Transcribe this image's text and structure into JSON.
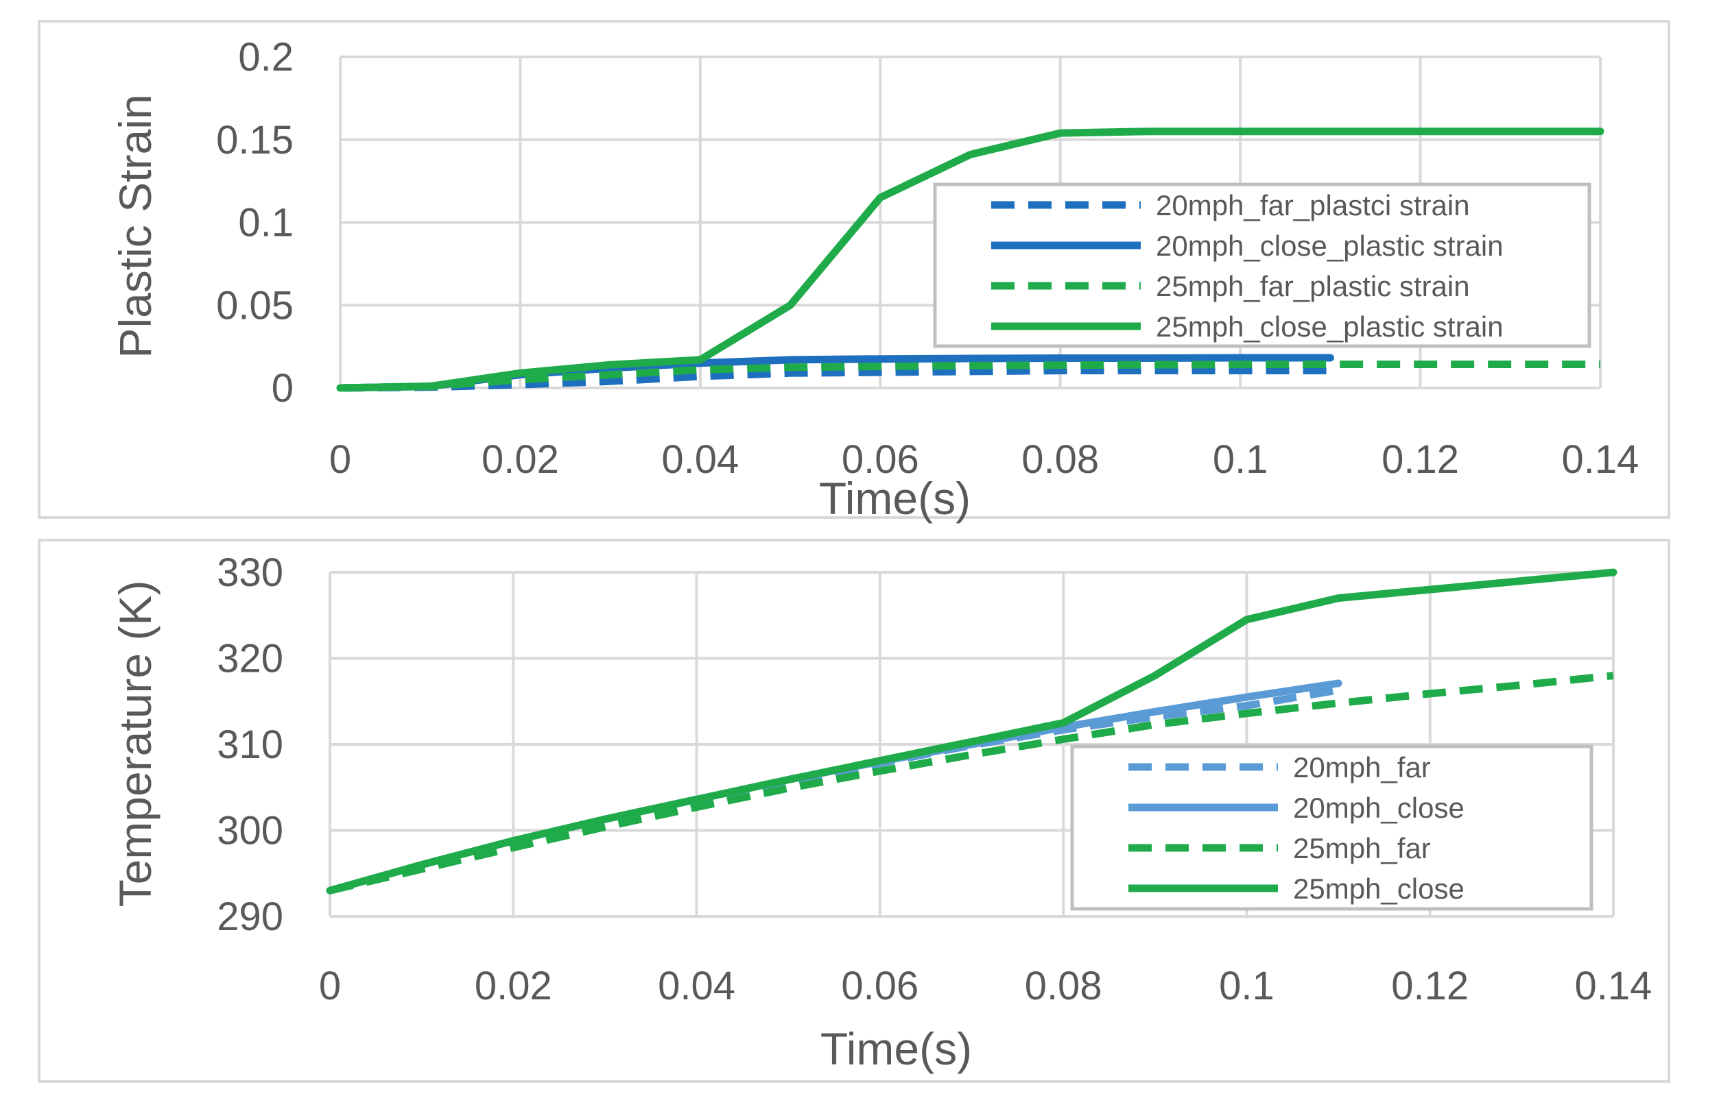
{
  "chart_data": [
    {
      "type": "line",
      "title": "",
      "xlabel": "Time(s)",
      "ylabel": "Plastic Strain",
      "xlim": [
        0,
        0.14
      ],
      "ylim": [
        0,
        0.2
      ],
      "x_ticks": [
        "0",
        "0.02",
        "0.04",
        "0.06",
        "0.08",
        "0.1",
        "0.12",
        "0.14"
      ],
      "y_ticks": [
        "0",
        "0.05",
        "0.1",
        "0.15",
        "0.2"
      ],
      "grid": true,
      "legend_position": "right",
      "series": [
        {
          "name": "20mph_far_plastci strain",
          "color": "#1f6fbf",
          "dash": "dashed",
          "x": [
            0,
            0.01,
            0.02,
            0.03,
            0.04,
            0.05,
            0.06,
            0.07,
            0.08,
            0.09,
            0.1,
            0.11
          ],
          "y": [
            0,
            0.0005,
            0.002,
            0.004,
            0.007,
            0.009,
            0.0095,
            0.01,
            0.0105,
            0.0105,
            0.0105,
            0.0105
          ]
        },
        {
          "name": "20mph_close_plastic strain",
          "color": "#1f6fbf",
          "dash": "solid",
          "x": [
            0,
            0.01,
            0.02,
            0.03,
            0.04,
            0.05,
            0.06,
            0.07,
            0.08,
            0.09,
            0.1,
            0.11
          ],
          "y": [
            0,
            0.001,
            0.008,
            0.012,
            0.015,
            0.017,
            0.0175,
            0.0178,
            0.018,
            0.018,
            0.0182,
            0.0182
          ]
        },
        {
          "name": "25mph_far_plastic strain",
          "color": "#1fab4a",
          "dash": "dashed",
          "x": [
            0,
            0.01,
            0.02,
            0.03,
            0.04,
            0.05,
            0.06,
            0.07,
            0.08,
            0.09,
            0.1,
            0.11,
            0.12,
            0.13,
            0.14
          ],
          "y": [
            0,
            0.001,
            0.005,
            0.008,
            0.011,
            0.0125,
            0.013,
            0.0135,
            0.0138,
            0.014,
            0.0142,
            0.0143,
            0.0143,
            0.0143,
            0.0143
          ]
        },
        {
          "name": "25mph_close_plastic strain",
          "color": "#1fab4a",
          "dash": "solid",
          "x": [
            0,
            0.01,
            0.02,
            0.03,
            0.04,
            0.05,
            0.06,
            0.07,
            0.08,
            0.09,
            0.1,
            0.11,
            0.12,
            0.13,
            0.14
          ],
          "y": [
            0,
            0.001,
            0.009,
            0.014,
            0.017,
            0.05,
            0.115,
            0.141,
            0.154,
            0.155,
            0.155,
            0.155,
            0.155,
            0.155,
            0.155
          ]
        }
      ]
    },
    {
      "type": "line",
      "title": "",
      "xlabel": "Time(s)",
      "ylabel": "Temperature (K)",
      "xlim": [
        0,
        0.14
      ],
      "ylim": [
        290,
        330
      ],
      "x_ticks": [
        "0",
        "0.02",
        "0.04",
        "0.06",
        "0.08",
        "0.1",
        "0.12",
        "0.14"
      ],
      "y_ticks": [
        "290",
        "300",
        "310",
        "320",
        "330"
      ],
      "grid": true,
      "legend_position": "bottom-right",
      "series": [
        {
          "name": "20mph_far",
          "color": "#5b9bd5",
          "dash": "dashed",
          "x": [
            0,
            0.01,
            0.02,
            0.03,
            0.04,
            0.05,
            0.06,
            0.07,
            0.08,
            0.09,
            0.1,
            0.11
          ],
          "y": [
            293,
            295.6,
            298.1,
            300.6,
            303,
            305.5,
            307.8,
            309.9,
            311.7,
            313.2,
            314.5,
            316.3
          ]
        },
        {
          "name": "20mph_close",
          "color": "#5b9bd5",
          "dash": "solid",
          "x": [
            0,
            0.01,
            0.02,
            0.03,
            0.04,
            0.05,
            0.06,
            0.07,
            0.08,
            0.09,
            0.1,
            0.11
          ],
          "y": [
            293,
            296,
            298.8,
            301.3,
            303.6,
            305.9,
            308,
            310,
            312,
            313.8,
            315.5,
            317.1
          ]
        },
        {
          "name": "25mph_far",
          "color": "#1fab4a",
          "dash": "dashed",
          "x": [
            0,
            0.01,
            0.02,
            0.03,
            0.04,
            0.05,
            0.06,
            0.07,
            0.08,
            0.09,
            0.1,
            0.11,
            0.12,
            0.13,
            0.14
          ],
          "y": [
            293,
            295.5,
            298,
            300.4,
            302.7,
            304.9,
            306.9,
            308.8,
            310.6,
            312.3,
            313.6,
            314.8,
            315.9,
            316.9,
            318
          ]
        },
        {
          "name": "25mph_close",
          "color": "#1fab4a",
          "dash": "solid",
          "x": [
            0,
            0.01,
            0.02,
            0.03,
            0.04,
            0.05,
            0.06,
            0.07,
            0.08,
            0.09,
            0.1,
            0.11,
            0.12,
            0.13,
            0.14
          ],
          "y": [
            293,
            296,
            298.8,
            301.3,
            303.6,
            305.9,
            308.1,
            310.3,
            312.5,
            318,
            324.5,
            327,
            328,
            329,
            330
          ]
        }
      ]
    }
  ]
}
